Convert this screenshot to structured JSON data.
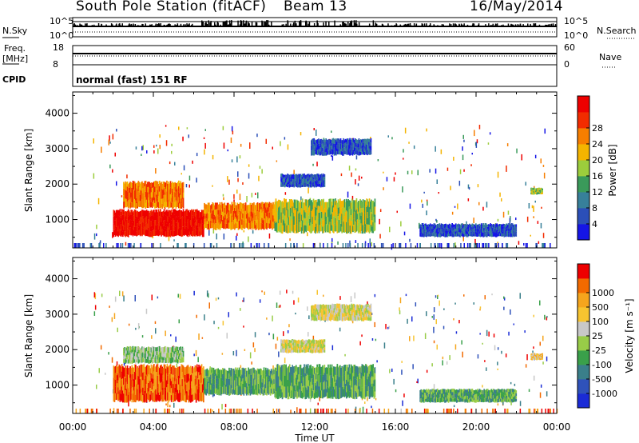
{
  "header": {
    "station": "South Pole Station (fitACF)",
    "beam": "Beam 13",
    "date": "16/May/2014"
  },
  "nsky_panel": {
    "left_label": "N.Sky",
    "right_label": "N.Search",
    "ticks_left": [
      "10^5",
      "10^0"
    ],
    "ticks_right": [
      "10^5",
      "10^0"
    ]
  },
  "freq_panel": {
    "left_label_1": "Freq.",
    "left_label_2": "[MHz]",
    "right_label": "Nave",
    "ticks_left": [
      "18",
      "8"
    ],
    "ticks_right": [
      "60",
      "0"
    ]
  },
  "cpid_panel": {
    "label": "CPID",
    "program": "normal (fast) 151 RF"
  },
  "colors": {
    "power": [
      "#1515e6",
      "#2b4fb8",
      "#37809a",
      "#3a9a5a",
      "#9ccd3c",
      "#f4b400",
      "#f77e00",
      "#f22c00",
      "#ee0000"
    ],
    "velocity": [
      "#ee0000",
      "#f26a00",
      "#f5a51d",
      "#f7c430",
      "#c8c8c8",
      "#98cc48",
      "#3aa04a",
      "#3a7f8a",
      "#2f52ba",
      "#1a2bd6"
    ]
  },
  "chart_data": [
    {
      "type": "heatmap",
      "name": "power",
      "xlabel": "",
      "ylabel": "Slant Range [km]",
      "y_ticks": [
        "1000",
        "2000",
        "3000",
        "4000"
      ],
      "ylim": [
        200,
        4600
      ],
      "colorbar_label": "Power [dB]",
      "colorbar_ticks": [
        "4",
        "8",
        "12",
        "16",
        "20",
        "24",
        "28"
      ],
      "regions": [
        {
          "t0": 2.0,
          "t1": 6.5,
          "r0": 500,
          "r1": 1300,
          "level": 8
        },
        {
          "t0": 2.5,
          "t1": 5.5,
          "r0": 1300,
          "r1": 2100,
          "level": 6
        },
        {
          "t0": 6.5,
          "t1": 11.0,
          "r0": 700,
          "r1": 1500,
          "level": 6
        },
        {
          "t0": 10.0,
          "t1": 15.0,
          "r0": 600,
          "r1": 1600,
          "level": 4
        },
        {
          "t0": 10.3,
          "t1": 12.5,
          "r0": 1900,
          "r1": 2300,
          "level": 1
        },
        {
          "t0": 11.8,
          "t1": 14.8,
          "r0": 2800,
          "r1": 3300,
          "level": 1
        },
        {
          "t0": 17.2,
          "t1": 22.0,
          "r0": 500,
          "r1": 900,
          "level": 1
        },
        {
          "t0": 22.7,
          "t1": 23.3,
          "r0": 1700,
          "r1": 1900,
          "level": 4
        }
      ]
    },
    {
      "type": "heatmap",
      "name": "velocity",
      "xlabel": "Time UT",
      "ylabel": "Slant Range [km]",
      "x_ticks": [
        "00:00",
        "04:00",
        "08:00",
        "12:00",
        "16:00",
        "20:00",
        "00:00"
      ],
      "y_ticks": [
        "1000",
        "2000",
        "3000",
        "4000"
      ],
      "ylim": [
        200,
        4600
      ],
      "colorbar_label": "Velocity [m s⁻¹]",
      "colorbar_ticks": [
        "-1000",
        "-500",
        "-100",
        "-25",
        "25",
        "100",
        "500",
        "1000"
      ],
      "regions": [
        {
          "t0": 2.0,
          "t1": 6.5,
          "r0": 500,
          "r1": 1600,
          "level": 1
        },
        {
          "t0": 2.5,
          "t1": 5.5,
          "r0": 1600,
          "r1": 2100,
          "level": 5
        },
        {
          "t0": 6.5,
          "t1": 11.0,
          "r0": 700,
          "r1": 1500,
          "level": 6
        },
        {
          "t0": 10.0,
          "t1": 15.0,
          "r0": 600,
          "r1": 1600,
          "level": 6
        },
        {
          "t0": 10.3,
          "t1": 12.5,
          "r0": 1900,
          "r1": 2300,
          "level": 4
        },
        {
          "t0": 11.8,
          "t1": 14.8,
          "r0": 2800,
          "r1": 3300,
          "level": 4
        },
        {
          "t0": 17.2,
          "t1": 22.0,
          "r0": 500,
          "r1": 900,
          "level": 6
        },
        {
          "t0": 22.7,
          "t1": 23.3,
          "r0": 1700,
          "r1": 1900,
          "level": 3
        }
      ]
    }
  ]
}
